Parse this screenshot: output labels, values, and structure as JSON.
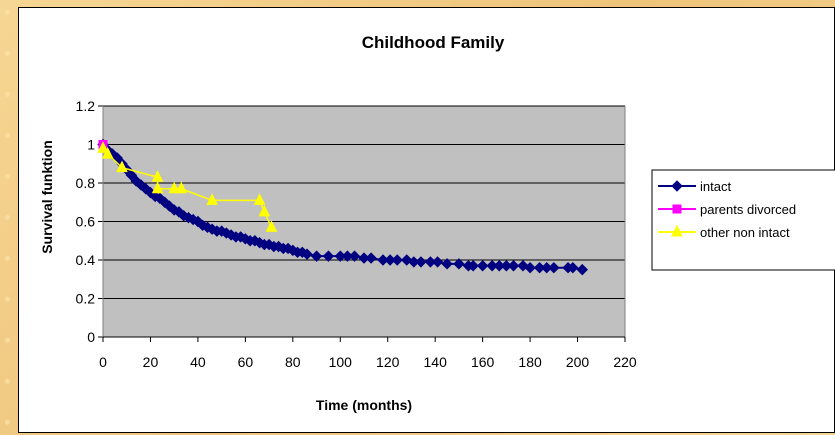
{
  "chart_data": {
    "type": "line",
    "title": "Childhood Family",
    "xlabel": "Time (months)",
    "ylabel": "Survival funktion",
    "xlim": [
      0,
      220
    ],
    "ylim": [
      0,
      1.2
    ],
    "xticks": [
      "0",
      "20",
      "40",
      "60",
      "80",
      "100",
      "120",
      "140",
      "160",
      "180",
      "200",
      "220"
    ],
    "yticks": [
      "0",
      "0.2",
      "0.4",
      "0.6",
      "0.8",
      "1",
      "1.2"
    ],
    "grid": "horizontal",
    "legend_position": "right",
    "series": [
      {
        "name": "intact",
        "color": "#000080",
        "marker": "diamond",
        "x": [
          0,
          2,
          4,
          6,
          8,
          10,
          12,
          14,
          16,
          18,
          20,
          22,
          24,
          26,
          28,
          30,
          32,
          34,
          36,
          38,
          40,
          42,
          44,
          46,
          48,
          50,
          52,
          54,
          56,
          58,
          60,
          62,
          64,
          66,
          68,
          70,
          72,
          74,
          76,
          78,
          80,
          82,
          84,
          86,
          90,
          95,
          100,
          103,
          106,
          110,
          113,
          118,
          121,
          124,
          128,
          131,
          134,
          138,
          141,
          145,
          150,
          154,
          156,
          160,
          164,
          167,
          170,
          173,
          177,
          180,
          184,
          187,
          190,
          196,
          198,
          202
        ],
        "y": [
          1.0,
          0.97,
          0.95,
          0.93,
          0.9,
          0.87,
          0.84,
          0.81,
          0.79,
          0.77,
          0.75,
          0.73,
          0.72,
          0.7,
          0.68,
          0.66,
          0.65,
          0.63,
          0.62,
          0.61,
          0.6,
          0.58,
          0.57,
          0.56,
          0.55,
          0.55,
          0.54,
          0.53,
          0.52,
          0.52,
          0.51,
          0.5,
          0.5,
          0.49,
          0.48,
          0.48,
          0.47,
          0.47,
          0.46,
          0.46,
          0.45,
          0.44,
          0.44,
          0.43,
          0.42,
          0.42,
          0.42,
          0.42,
          0.42,
          0.41,
          0.41,
          0.4,
          0.4,
          0.4,
          0.4,
          0.39,
          0.39,
          0.39,
          0.39,
          0.38,
          0.38,
          0.37,
          0.37,
          0.37,
          0.37,
          0.37,
          0.37,
          0.37,
          0.37,
          0.36,
          0.36,
          0.36,
          0.36,
          0.36,
          0.36,
          0.35
        ]
      },
      {
        "name": "parents divorced",
        "color": "#ff00ff",
        "marker": "square",
        "x": [
          0
        ],
        "y": [
          1.0
        ]
      },
      {
        "name": "other non intact",
        "color": "#ffff00",
        "marker": "triangle",
        "x": [
          0,
          2,
          8,
          23,
          23,
          30,
          33,
          46,
          66,
          68,
          71
        ],
        "y": [
          0.98,
          0.95,
          0.88,
          0.83,
          0.77,
          0.77,
          0.77,
          0.71,
          0.71,
          0.65,
          0.57
        ]
      }
    ]
  }
}
